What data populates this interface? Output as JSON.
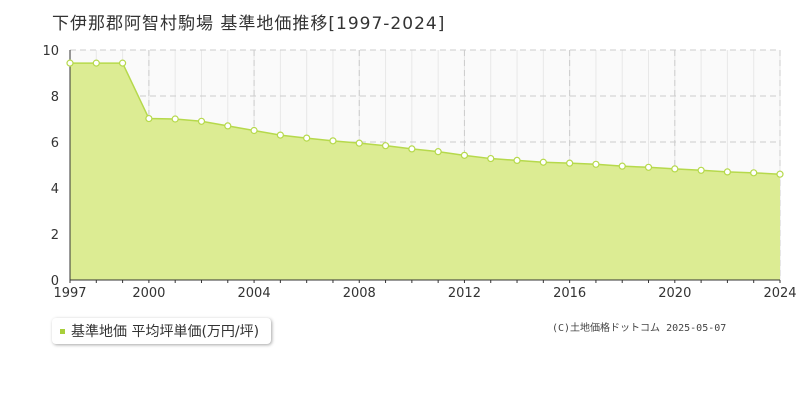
{
  "header": {
    "title": "下伊那郡阿智村駒場 基準地価推移[1997-2024]"
  },
  "legend": {
    "label": "基準地価 平均坪単価(万円/坪)"
  },
  "credit": "(C)土地価格ドットコム 2025-05-07",
  "colors": {
    "area_fill": "#dcec93",
    "line": "#b6d94c",
    "marker_fill": "#ffffff",
    "grid": "#cccccc",
    "axis": "#333333",
    "legend_swatch": "#a8cf3a"
  },
  "chart_data": {
    "type": "area",
    "title": "下伊那郡阿智村駒場 基準地価推移[1997-2024]",
    "xlabel": "",
    "ylabel": "",
    "xlim": [
      1997,
      2024
    ],
    "ylim": [
      0,
      10
    ],
    "x_ticks": [
      1997,
      2000,
      2004,
      2008,
      2012,
      2016,
      2020,
      2024
    ],
    "y_ticks": [
      0,
      2,
      4,
      6,
      8,
      10
    ],
    "grid": true,
    "legend_position": "bottom-left",
    "series": [
      {
        "name": "基準地価 平均坪単価(万円/坪)",
        "x": [
          1997,
          1998,
          1999,
          2000,
          2001,
          2002,
          2003,
          2004,
          2005,
          2006,
          2007,
          2008,
          2009,
          2010,
          2011,
          2012,
          2013,
          2014,
          2015,
          2016,
          2017,
          2018,
          2019,
          2020,
          2021,
          2022,
          2023,
          2024
        ],
        "y": [
          9.43,
          9.43,
          9.43,
          7.02,
          7.0,
          6.9,
          6.7,
          6.5,
          6.3,
          6.17,
          6.05,
          5.95,
          5.84,
          5.7,
          5.58,
          5.42,
          5.28,
          5.2,
          5.12,
          5.08,
          5.03,
          4.95,
          4.9,
          4.83,
          4.77,
          4.7,
          4.66,
          4.6
        ]
      }
    ]
  }
}
